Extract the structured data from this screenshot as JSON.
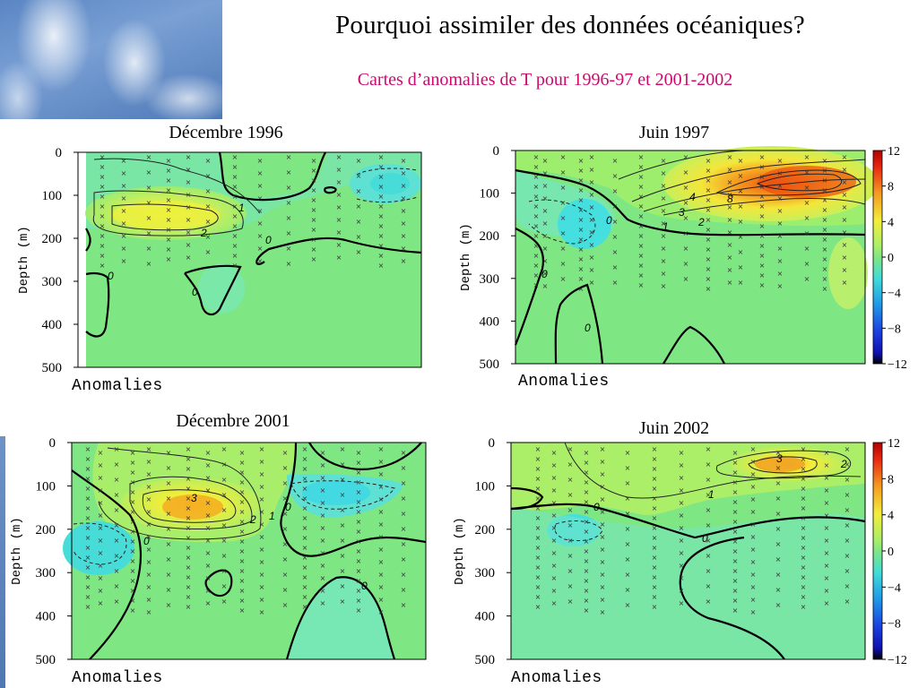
{
  "header": {
    "title": "Pourquoi assimiler des données océaniques?",
    "subtitle": "Cartes d’anomalies de T pour  1996-97 et 2001-2002"
  },
  "colors": {
    "background_green": "#7fe684",
    "cyan": "#47e0d6",
    "light_cyan": "#74e6c2",
    "yellow_green": "#c9ef5a",
    "yellow": "#f4f03a",
    "orange": "#f5a021",
    "red_orange": "#ee5a12",
    "title_pink": "#cc0a6e"
  },
  "chart_data": [
    {
      "type": "heatmap",
      "title": "Décembre 1996",
      "xlabel": "Anomalies",
      "ylabel": "Depth (m)",
      "ylim": [
        500,
        0
      ],
      "yticks": [
        0,
        100,
        200,
        300,
        400,
        500
      ],
      "contour_labels": [
        "1",
        "2",
        "0",
        "0",
        "0"
      ],
      "max_anomaly_approx": 2.5
    },
    {
      "type": "heatmap",
      "title": "Juin 1997",
      "xlabel": "Anomalies",
      "ylabel": "Depth (m)",
      "ylim": [
        500,
        0
      ],
      "yticks": [
        0,
        100,
        200,
        300,
        400,
        500
      ],
      "contour_labels": [
        "4",
        "8",
        "3",
        "2",
        "1",
        "0",
        "0",
        "0"
      ],
      "max_anomaly_approx": 9
    },
    {
      "type": "heatmap",
      "title": "Décembre 2001",
      "xlabel": "Anomalies",
      "ylabel": "Depth (m)",
      "ylim": [
        500,
        0
      ],
      "yticks": [
        0,
        100,
        200,
        300,
        400,
        500
      ],
      "contour_labels": [
        "3",
        "2",
        "1",
        "0",
        "0",
        "0"
      ],
      "max_anomaly_approx": 3.5
    },
    {
      "type": "heatmap",
      "title": "Juin 2002",
      "xlabel": "Anomalies",
      "ylabel": "Depth (m)",
      "ylim": [
        500,
        0
      ],
      "yticks": [
        0,
        100,
        200,
        300,
        400,
        500
      ],
      "contour_labels": [
        "3",
        "2",
        "1",
        "0",
        "0"
      ],
      "max_anomaly_approx": 3.5
    }
  ],
  "colorbar": {
    "ticks": [
      "12",
      "8",
      "4",
      "0",
      "−4",
      "−8",
      "−12"
    ],
    "range": [
      -12,
      12
    ]
  }
}
